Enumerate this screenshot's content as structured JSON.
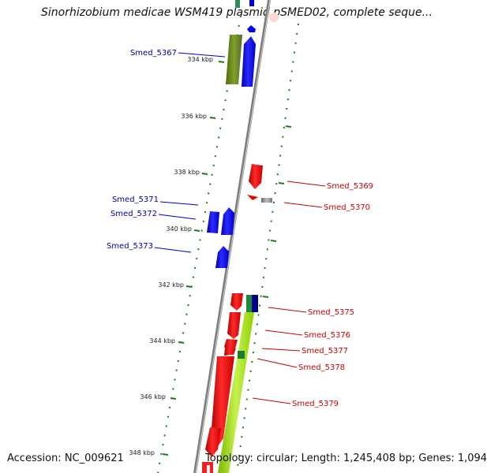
{
  "title": "Sinorhizobium medicae WSM419 plasmid pSMED02, complete seque...",
  "footer": {
    "accession": "Accession: NC_009621",
    "stats": "Topology: circular; Length: 1,245,408 bp; Genes: 1,094"
  },
  "ticks": [
    "334 kbp",
    "336 kbp",
    "338 kbp",
    "340 kbp",
    "342 kbp",
    "344 kbp",
    "346 kbp",
    "348 kbp"
  ],
  "genes_left": [
    "Smed_5367",
    "Smed_5371",
    "Smed_5372",
    "Smed_5373"
  ],
  "genes_right": [
    "Smed_5369",
    "Smed_5370",
    "Smed_5375",
    "Smed_5376",
    "Smed_5377",
    "Smed_5378",
    "Smed_5379"
  ],
  "colors": {
    "forward_gene": "#0000ff",
    "reverse_gene": "#ff0000",
    "left_label": "#0000aa",
    "right_label": "#cc0000",
    "backbone": "#8a8a8a",
    "ticks": "#1f7a1f",
    "olive_block": "#6b8e23",
    "lime_block": "#9acd32"
  }
}
